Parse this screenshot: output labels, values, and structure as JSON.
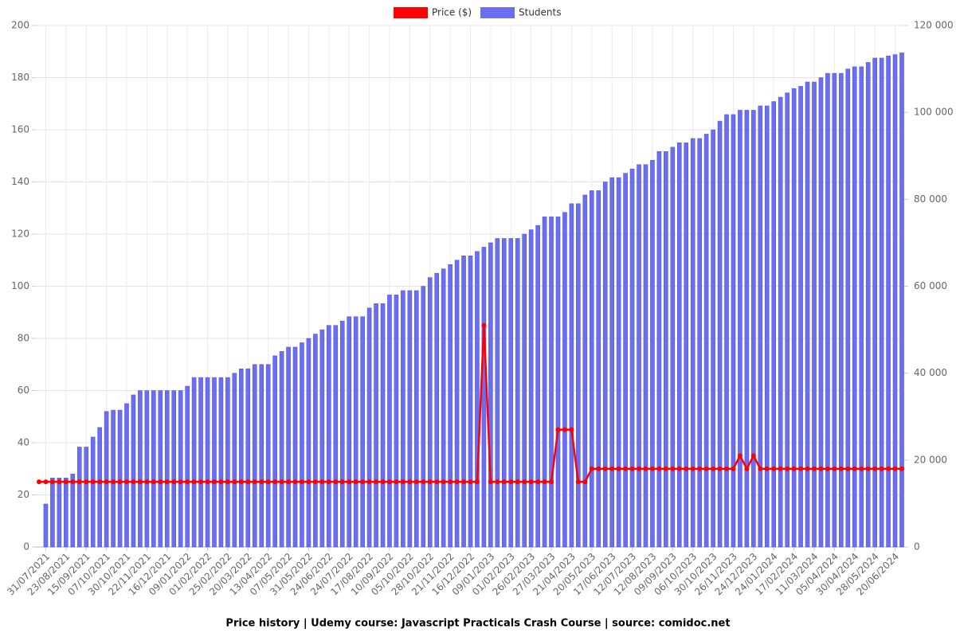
{
  "chart_data": {
    "type": "bar-line",
    "title": "Price history | Udemy course: Javascript Practicals Crash Course | source: comidoc.net",
    "categories": [
      null,
      "31/07/2021",
      null,
      null,
      "23/08/2021",
      null,
      null,
      "15/09/2021",
      null,
      null,
      "07/10/2021",
      null,
      null,
      "30/10/2021",
      null,
      null,
      "22/11/2021",
      null,
      null,
      "16/12/2021",
      null,
      null,
      "09/01/2022",
      null,
      null,
      "01/02/2022",
      null,
      null,
      "25/02/2022",
      null,
      null,
      "20/03/2022",
      null,
      null,
      "13/04/2022",
      null,
      null,
      "07/05/2022",
      null,
      null,
      "31/05/2022",
      null,
      null,
      "24/06/2022",
      null,
      null,
      "24/07/2022",
      null,
      null,
      "17/08/2022",
      null,
      null,
      "10/09/2022",
      null,
      null,
      "05/10/2022",
      null,
      null,
      "28/10/2022",
      null,
      null,
      "21/11/2022",
      null,
      null,
      "16/12/2022",
      null,
      null,
      "09/01/2023",
      null,
      null,
      "01/02/2023",
      null,
      null,
      "26/02/2023",
      null,
      null,
      "27/03/2023",
      null,
      null,
      "21/04/2023",
      null,
      null,
      "20/05/2023",
      null,
      null,
      "17/06/2023",
      null,
      null,
      "12/07/2023",
      null,
      null,
      "12/08/2023",
      null,
      null,
      "09/09/2023",
      null,
      null,
      "06/10/2023",
      null,
      null,
      "30/10/2023",
      null,
      null,
      "26/11/2023",
      null,
      null,
      "24/12/2023",
      null,
      null,
      "24/01/2024",
      null,
      null,
      "17/02/2024",
      null,
      null,
      "11/03/2024",
      null,
      null,
      "05/04/2024",
      null,
      null,
      "30/04/2024",
      null,
      null,
      "28/05/2024",
      null,
      null,
      "20/06/2024",
      null
    ],
    "series": [
      {
        "name": "Price ($)",
        "color": "#ff0000",
        "kind": "line",
        "axis": "y",
        "values": [
          25,
          25,
          25,
          25,
          25,
          25,
          25,
          25,
          25,
          25,
          25,
          25,
          25,
          25,
          25,
          25,
          25,
          25,
          25,
          25,
          25,
          25,
          25,
          25,
          25,
          25,
          25,
          25,
          25,
          25,
          25,
          25,
          25,
          25,
          25,
          25,
          25,
          25,
          25,
          25,
          25,
          25,
          25,
          25,
          25,
          25,
          25,
          25,
          25,
          25,
          25,
          25,
          25,
          25,
          25,
          25,
          25,
          25,
          25,
          25,
          25,
          25,
          25,
          25,
          25,
          25,
          85,
          25,
          25,
          25,
          25,
          25,
          25,
          25,
          25,
          25,
          25,
          45,
          45,
          45,
          25,
          25,
          30,
          30,
          30,
          30,
          30,
          30,
          30,
          30,
          30,
          30,
          30,
          30,
          30,
          30,
          30,
          30,
          30,
          30,
          30,
          30,
          30,
          30,
          35,
          30,
          35,
          30,
          30,
          30,
          30,
          30,
          30,
          30,
          30,
          30,
          30,
          30,
          30,
          30,
          30,
          30,
          30,
          30,
          30,
          30,
          30,
          30,
          30
        ]
      },
      {
        "name": "Students",
        "color": "#6b6ef0",
        "kind": "bar",
        "axis": "y2",
        "values": [
          null,
          9900,
          15900,
          15900,
          15900,
          16800,
          23000,
          23000,
          25300,
          27500,
          31200,
          31500,
          31500,
          33000,
          35000,
          36000,
          36000,
          36000,
          36000,
          36000,
          36000,
          36000,
          37000,
          39000,
          39000,
          39000,
          39000,
          39000,
          39000,
          40000,
          41000,
          41000,
          42000,
          42000,
          42000,
          44000,
          45000,
          46000,
          46000,
          47000,
          48000,
          49000,
          50000,
          51000,
          51000,
          52000,
          53000,
          53000,
          53000,
          55000,
          56000,
          56000,
          58000,
          58000,
          59000,
          59000,
          59000,
          60000,
          62000,
          63000,
          64000,
          65000,
          66000,
          67000,
          67000,
          68000,
          69000,
          70000,
          71000,
          71000,
          71000,
          71000,
          72000,
          73000,
          74000,
          76000,
          76000,
          76000,
          77000,
          79000,
          79000,
          81000,
          82000,
          82000,
          84000,
          85000,
          85000,
          86000,
          87000,
          88000,
          88000,
          89000,
          91000,
          91000,
          92000,
          93000,
          93000,
          94000,
          94000,
          95000,
          96000,
          98000,
          99500,
          99500,
          100500,
          100500,
          100500,
          101500,
          101500,
          102500,
          103500,
          104500,
          105500,
          106000,
          107000,
          107000,
          108000,
          109000,
          109000,
          109000,
          110000,
          110500,
          110500,
          111500,
          112500,
          112500,
          113000,
          113300,
          113700
        ]
      }
    ],
    "ylim": [
      0,
      200
    ],
    "yticks": [
      0,
      20,
      40,
      60,
      80,
      100,
      120,
      140,
      160,
      180,
      200
    ],
    "y2lim": [
      0,
      120000
    ],
    "y2ticks": [
      0,
      {
        "value": 20000,
        "label": "20 000"
      },
      {
        "value": 40000,
        "label": "40 000"
      },
      {
        "value": 60000,
        "label": "60 000"
      },
      {
        "value": 80000,
        "label": "80 000"
      },
      {
        "value": 100000,
        "label": "100 000"
      },
      {
        "value": 120000,
        "label": "120 000"
      }
    ],
    "grid": true,
    "legend": "top"
  }
}
